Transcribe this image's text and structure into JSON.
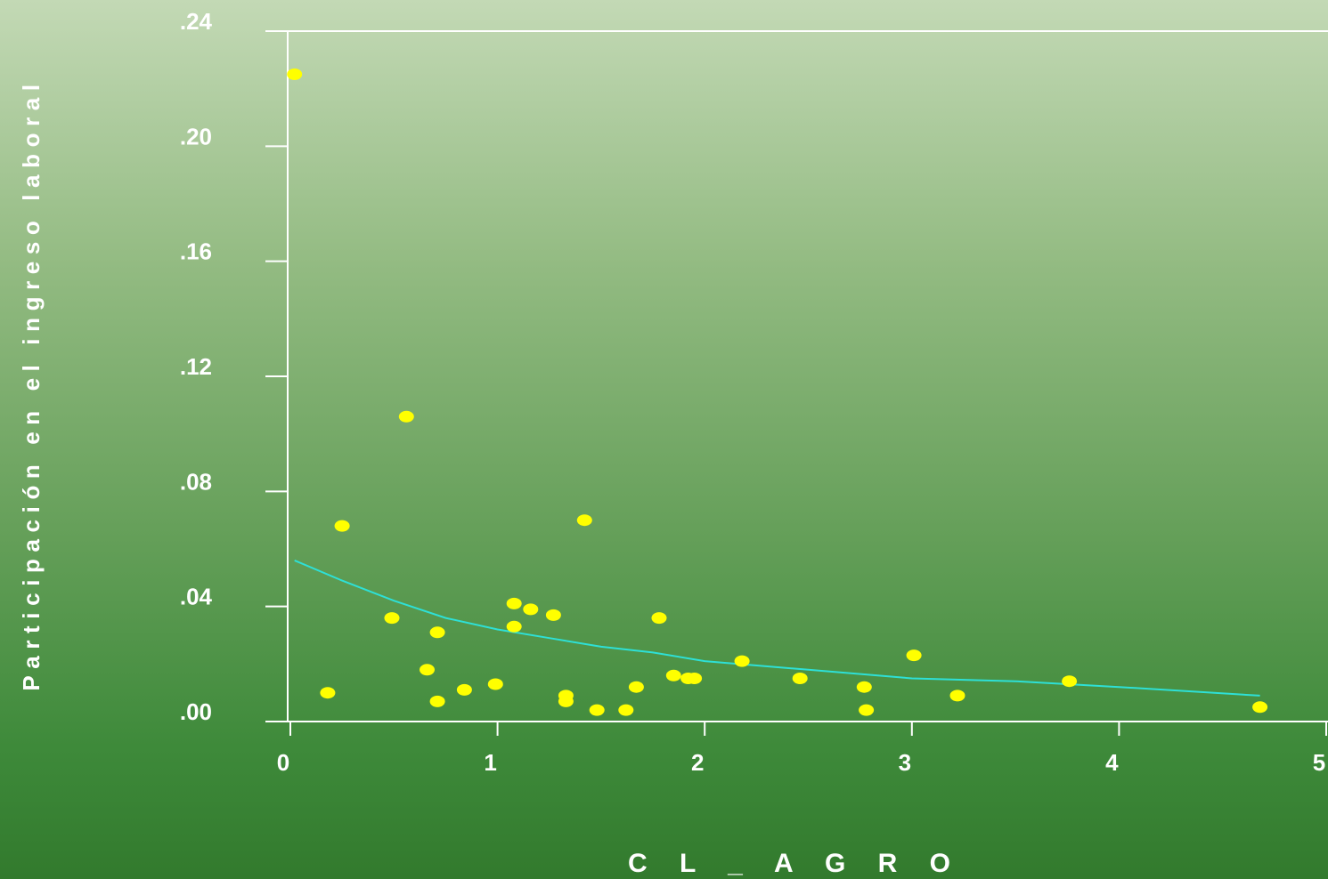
{
  "chart_data": {
    "type": "scatter",
    "title": "",
    "xlabel": "C L _ A G R O",
    "ylabel": "Participación en el ingreso laboral",
    "xlim": [
      0,
      5
    ],
    "ylim": [
      0,
      0.24
    ],
    "x_ticks": [
      "0",
      "1",
      "2",
      "3",
      "4",
      "5"
    ],
    "y_ticks": [
      ".00",
      ".04",
      ".08",
      ".12",
      ".16",
      ".20",
      ".24"
    ],
    "grid": false,
    "colors": {
      "points": "#ffff00",
      "fit_line": "#2ee0d6",
      "axes": "#ffffff"
    },
    "series": [
      {
        "type": "scatter",
        "points": [
          [
            0.02,
            0.225
          ],
          [
            0.18,
            0.01
          ],
          [
            0.25,
            0.068
          ],
          [
            0.49,
            0.036
          ],
          [
            0.56,
            0.106
          ],
          [
            0.66,
            0.018
          ],
          [
            0.71,
            0.031
          ],
          [
            0.71,
            0.007
          ],
          [
            0.84,
            0.011
          ],
          [
            0.99,
            0.013
          ],
          [
            1.08,
            0.041
          ],
          [
            1.08,
            0.033
          ],
          [
            1.16,
            0.039
          ],
          [
            1.27,
            0.037
          ],
          [
            1.33,
            0.009
          ],
          [
            1.33,
            0.007
          ],
          [
            1.42,
            0.07
          ],
          [
            1.48,
            0.004
          ],
          [
            1.62,
            0.004
          ],
          [
            1.67,
            0.012
          ],
          [
            1.78,
            0.036
          ],
          [
            1.85,
            0.016
          ],
          [
            1.92,
            0.015
          ],
          [
            1.95,
            0.015
          ],
          [
            2.18,
            0.021
          ],
          [
            2.46,
            0.015
          ],
          [
            2.77,
            0.012
          ],
          [
            2.78,
            0.004
          ],
          [
            3.01,
            0.023
          ],
          [
            3.22,
            0.009
          ],
          [
            3.76,
            0.014
          ],
          [
            4.68,
            0.005
          ]
        ]
      },
      {
        "type": "line",
        "points": [
          [
            0.02,
            0.056
          ],
          [
            0.25,
            0.049
          ],
          [
            0.5,
            0.042
          ],
          [
            0.75,
            0.036
          ],
          [
            1.0,
            0.032
          ],
          [
            1.25,
            0.029
          ],
          [
            1.5,
            0.026
          ],
          [
            1.75,
            0.024
          ],
          [
            2.0,
            0.021
          ],
          [
            2.5,
            0.018
          ],
          [
            3.0,
            0.015
          ],
          [
            3.5,
            0.014
          ],
          [
            4.0,
            0.012
          ],
          [
            4.68,
            0.009
          ]
        ]
      }
    ]
  }
}
